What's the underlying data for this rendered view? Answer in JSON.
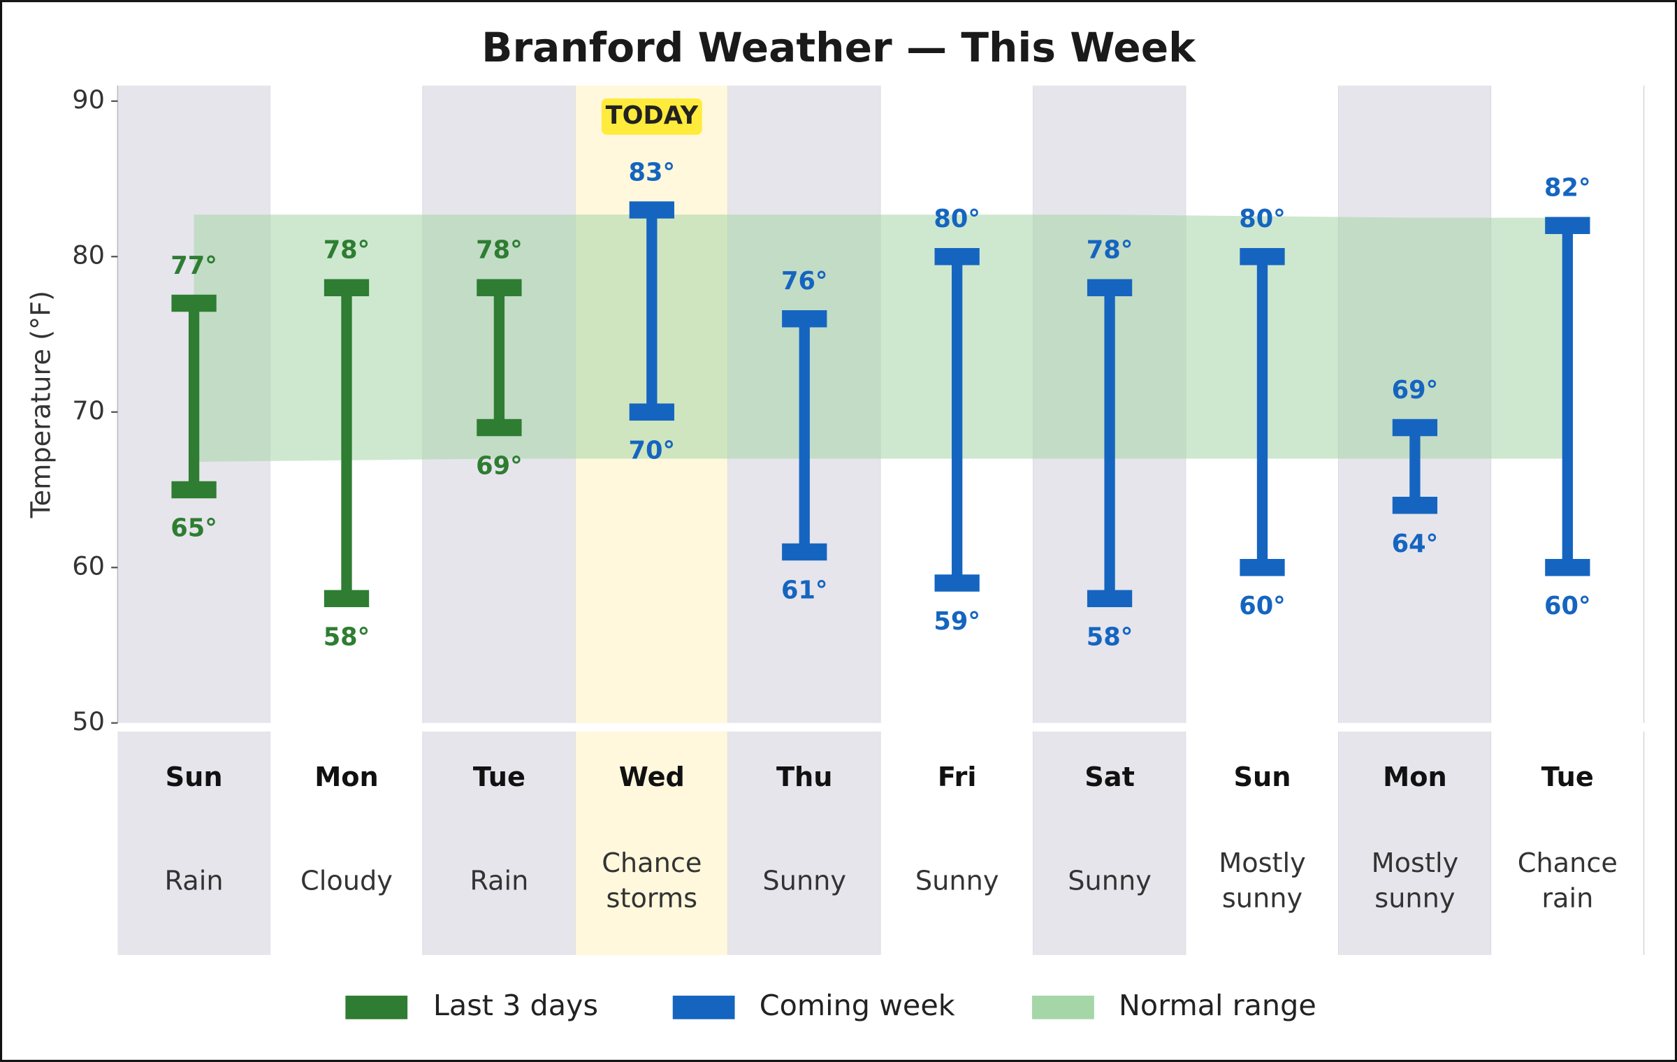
{
  "chart_data": {
    "type": "range_bar",
    "title": "Branford Weather — This Week",
    "y_label": "Temperature (°F)",
    "categories": [
      "Sun",
      "Mon",
      "Tue",
      "Wed",
      "Thu",
      "Fri",
      "Sat",
      "Sun",
      "Mon",
      "Tue"
    ],
    "conditions": [
      "Rain",
      "Cloudy",
      "Rain",
      "Chance storms",
      "Sunny",
      "Sunny",
      "Sunny",
      "Mostly sunny",
      "Mostly sunny",
      "Chance rain"
    ],
    "today_index": 3,
    "today_label": "TODAY",
    "ylim": [
      50,
      91
    ],
    "yticks": [
      50,
      60,
      70,
      80,
      90
    ],
    "series": [
      {
        "name": "Last 3 days",
        "color": "#2e7d32",
        "highs": [
          77,
          78,
          78,
          null,
          null,
          null,
          null,
          null,
          null,
          null
        ],
        "high_labels": [
          "77°",
          "78°",
          "78°",
          null,
          null,
          null,
          null,
          null,
          null,
          null
        ],
        "lows": [
          65,
          58,
          69,
          null,
          null,
          null,
          null,
          null,
          null,
          null
        ],
        "low_labels": [
          "65°",
          "58°",
          "69°",
          null,
          null,
          null,
          null,
          null,
          null,
          null
        ]
      },
      {
        "name": "Coming week",
        "color": "#1565c0",
        "highs": [
          null,
          null,
          null,
          83,
          76,
          80,
          78,
          80,
          69,
          82
        ],
        "high_labels": [
          null,
          null,
          null,
          "83°",
          "76°",
          "80°",
          "78°",
          "80°",
          "69°",
          "82°"
        ],
        "lows": [
          null,
          null,
          null,
          70,
          61,
          59,
          58,
          60,
          64,
          60
        ],
        "low_labels": [
          null,
          null,
          null,
          "70°",
          "61°",
          "59°",
          "58°",
          "60°",
          "64°",
          "60°"
        ]
      }
    ],
    "normal": {
      "name": "Normal range",
      "color": "#a5d6a7",
      "highs": [
        82.7,
        82.7,
        82.7,
        82.7,
        82.7,
        82.7,
        82.7,
        82.6,
        82.5,
        82.5
      ],
      "lows": [
        66.8,
        66.9,
        67,
        67,
        67,
        67,
        67,
        67,
        67,
        67
      ]
    }
  }
}
